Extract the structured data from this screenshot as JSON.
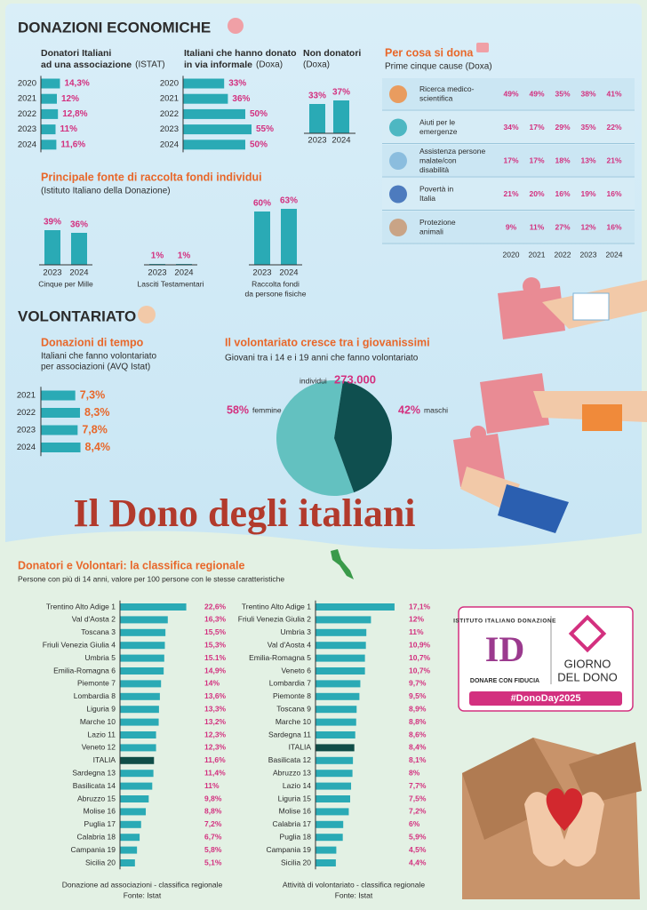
{
  "sections": {
    "economic": "DONAZIONI ECONOMICHE",
    "volunteering": "VOLONTARIATO"
  },
  "main_title": "Il Dono degli italiani",
  "chart_data": [
    {
      "type": "hbar",
      "title": [
        "Donatori Italiani",
        "ad una associazione"
      ],
      "source": "(ISTAT)",
      "categories": [
        "2020",
        "2021",
        "2022",
        "2023",
        "2024"
      ],
      "values": [
        14.3,
        12,
        12.8,
        11,
        11.6
      ],
      "value_labels": [
        "14,3%",
        "12%",
        "12,8%",
        "11%",
        "11,6%"
      ],
      "color": "#2aaab5"
    },
    {
      "type": "hbar",
      "title": [
        "Italiani che hanno donato",
        "in via informale"
      ],
      "source": "(Doxa)",
      "categories": [
        "2020",
        "2021",
        "2022",
        "2023",
        "2024"
      ],
      "values": [
        33,
        36,
        50,
        55,
        50
      ],
      "value_labels": [
        "33%",
        "36%",
        "50%",
        "55%",
        "50%"
      ],
      "color": "#2aaab5"
    },
    {
      "type": "vbar",
      "title": "Non donatori",
      "source": "(Doxa)",
      "categories": [
        "2023",
        "2024"
      ],
      "values": [
        33,
        37
      ],
      "value_labels": [
        "33%",
        "37%"
      ],
      "color": "#2aaab5"
    },
    {
      "type": "grouped_vbar",
      "title": "Principale fonte di raccolta fondi individui",
      "source": "(Istituto Italiano della Donazione)",
      "categories": [
        [
          "Cinque per Mille"
        ],
        [
          "Lasciti Testamentari"
        ],
        [
          "Raccolta fondi",
          "da persone fisiche"
        ]
      ],
      "x": [
        "2023",
        "2024"
      ],
      "values": [
        [
          39,
          36
        ],
        [
          1,
          1
        ],
        [
          60,
          63
        ]
      ],
      "value_labels": [
        [
          "39%",
          "36%"
        ],
        [
          "1%",
          "1%"
        ],
        [
          "60%",
          "63%"
        ]
      ],
      "color": "#2aaab5"
    },
    {
      "type": "hbar",
      "title": "Donazioni di tempo",
      "subtitle": [
        "Italiani che fanno volontariato",
        "per associazioni (AVQ Istat)"
      ],
      "categories": [
        "2021",
        "2022",
        "2023",
        "2024"
      ],
      "values": [
        7.3,
        8.3,
        7.8,
        8.4
      ],
      "value_labels": [
        "7,3%",
        "8,3%",
        "7,8%",
        "8,4%"
      ],
      "color": "#2aaab5"
    },
    {
      "type": "pie",
      "title": "Il volontariato cresce tra i giovanissimi",
      "subtitle": "Giovani tra i 14 e i 19 anni che fanno volontariato",
      "total_caption": "individui",
      "total": {
        "value": 273000,
        "label": "273.000"
      },
      "categories": [
        "femmine",
        "maschi"
      ],
      "values": [
        58,
        42
      ],
      "value_labels": [
        "58%",
        "42%"
      ],
      "colors": [
        "#63c1c0",
        "#0f4f4f"
      ]
    },
    {
      "type": "ranking",
      "caption": "Donazione ad associazioni - classifica regionale",
      "source": "Fonte: Istat",
      "categories": [
        "Trentino Alto Adige 1",
        "Val d'Aosta 2",
        "Toscana 3",
        "Friuli Venezia Giulia 4",
        "Umbria 5",
        "Emilia-Romagna 6",
        "Piemonte 7",
        "Lombardia 8",
        "Liguria 9",
        "Marche 10",
        "Lazio 11",
        "Veneto 12",
        "ITALIA",
        "Sardegna 13",
        "Basilicata 14",
        "Abruzzo 15",
        "Molise 16",
        "Puglia 17",
        "Calabria 18",
        "Campania 19",
        "Sicilia 20"
      ],
      "values": [
        22.6,
        16.3,
        15.5,
        15.3,
        15.1,
        14.9,
        14,
        13.6,
        13.3,
        13.2,
        12.3,
        12.3,
        11.6,
        11.4,
        11,
        9.8,
        8.8,
        7.2,
        6.7,
        5.8,
        5.1
      ],
      "value_labels": [
        "22,6%",
        "16,3%",
        "15,5%",
        "15,3%",
        "15.1%",
        "14,9%",
        "14%",
        "13,6%",
        "13,3%",
        "13,2%",
        "12,3%",
        "12,3%",
        "11,6%",
        "11,4%",
        "11%",
        "9,8%",
        "8,8%",
        "7,2%",
        "6,7%",
        "5,8%",
        "5,1%"
      ],
      "colors": [
        "#2aaab5",
        "#2aaab5",
        "#2aaab5",
        "#2aaab5",
        "#2aaab5",
        "#2aaab5",
        "#2aaab5",
        "#2aaab5",
        "#2aaab5",
        "#2aaab5",
        "#2aaab5",
        "#2aaab5",
        "#0f4d47",
        "#2aaab5",
        "#2aaab5",
        "#2aaab5",
        "#2aaab5",
        "#2aaab5",
        "#2aaab5",
        "#2aaab5",
        "#2aaab5"
      ]
    },
    {
      "type": "ranking",
      "caption": "Attività di volontariato - classifica regionale",
      "source": "Fonte: Istat",
      "categories": [
        "Trentino Alto Adige 1",
        "Friuli Venezia Giulia 2",
        "Umbria 3",
        "Val d'Aosta 4",
        "Emilia-Romagna 5",
        "Veneto 6",
        "Lombardia 7",
        "Piemonte 8",
        "Toscana 9",
        "Marche 10",
        "Sardegna 11",
        "ITALIA",
        "Basilicata 12",
        "Abruzzo 13",
        "Lazio 14",
        "Liguria 15",
        "Molise 16",
        "Calabria 17",
        "Puglia 18",
        "Campania 19",
        "Sicilia 20"
      ],
      "values": [
        17.1,
        12,
        11,
        10.9,
        10.7,
        10.7,
        9.7,
        9.5,
        8.9,
        8.8,
        8.6,
        8.4,
        8.1,
        8,
        7.7,
        7.5,
        7.2,
        6,
        5.9,
        4.5,
        4.4
      ],
      "value_labels": [
        "17,1%",
        "12%",
        "11%",
        "10,9%",
        "10,7%",
        "10,7%",
        "9,7%",
        "9,5%",
        "8,9%",
        "8,8%",
        "8,6%",
        "8,4%",
        "8,1%",
        "8%",
        "7,7%",
        "7,5%",
        "7,2%",
        "6%",
        "5,9%",
        "4,5%",
        "4,4%"
      ],
      "colors": [
        "#2aaab5",
        "#2aaab5",
        "#2aaab5",
        "#2aaab5",
        "#2aaab5",
        "#2aaab5",
        "#2aaab5",
        "#2aaab5",
        "#2aaab5",
        "#2aaab5",
        "#2aaab5",
        "#0f4d47",
        "#2aaab5",
        "#2aaab5",
        "#2aaab5",
        "#2aaab5",
        "#2aaab5",
        "#2aaab5",
        "#2aaab5",
        "#2aaab5",
        "#2aaab5"
      ]
    }
  ],
  "causes": {
    "title": "Per cosa si dona",
    "subtitle": "Prime cinque cause (Doxa)",
    "columns": [
      "2020",
      "2021",
      "2022",
      "2023",
      "2024"
    ],
    "rows": [
      {
        "label": [
          "Ricerca medico-",
          "scientifica"
        ],
        "values": [
          "49%",
          "49%",
          "35%",
          "38%",
          "41%"
        ]
      },
      {
        "label": [
          "Aiuti per le",
          "emergenze"
        ],
        "values": [
          "34%",
          "17%",
          "29%",
          "35%",
          "22%"
        ]
      },
      {
        "label": [
          "Assistenza persone",
          "malate/con",
          "disabilità"
        ],
        "values": [
          "17%",
          "17%",
          "18%",
          "13%",
          "21%"
        ]
      },
      {
        "label": [
          "Povertà in",
          "Italia"
        ],
        "values": [
          "21%",
          "20%",
          "16%",
          "19%",
          "16%"
        ]
      },
      {
        "label": [
          "Protezione",
          "animali"
        ],
        "values": [
          "9%",
          "11%",
          "27%",
          "12%",
          "16%"
        ]
      }
    ]
  },
  "regional": {
    "title": "Donatori e Volontari: la classifica regionale",
    "subtitle": "Persone con più di 14 anni, valore per 100 persone con le stesse caratteristiche"
  },
  "logo": {
    "arc": "ISTITUTO ITALIANO DONAZIONE",
    "initials": "ID",
    "tagline": "DONARE CON FIDUCIA",
    "event": [
      "GIORNO",
      "DEL DONO"
    ],
    "hashtag": "#DonoDay2025"
  }
}
